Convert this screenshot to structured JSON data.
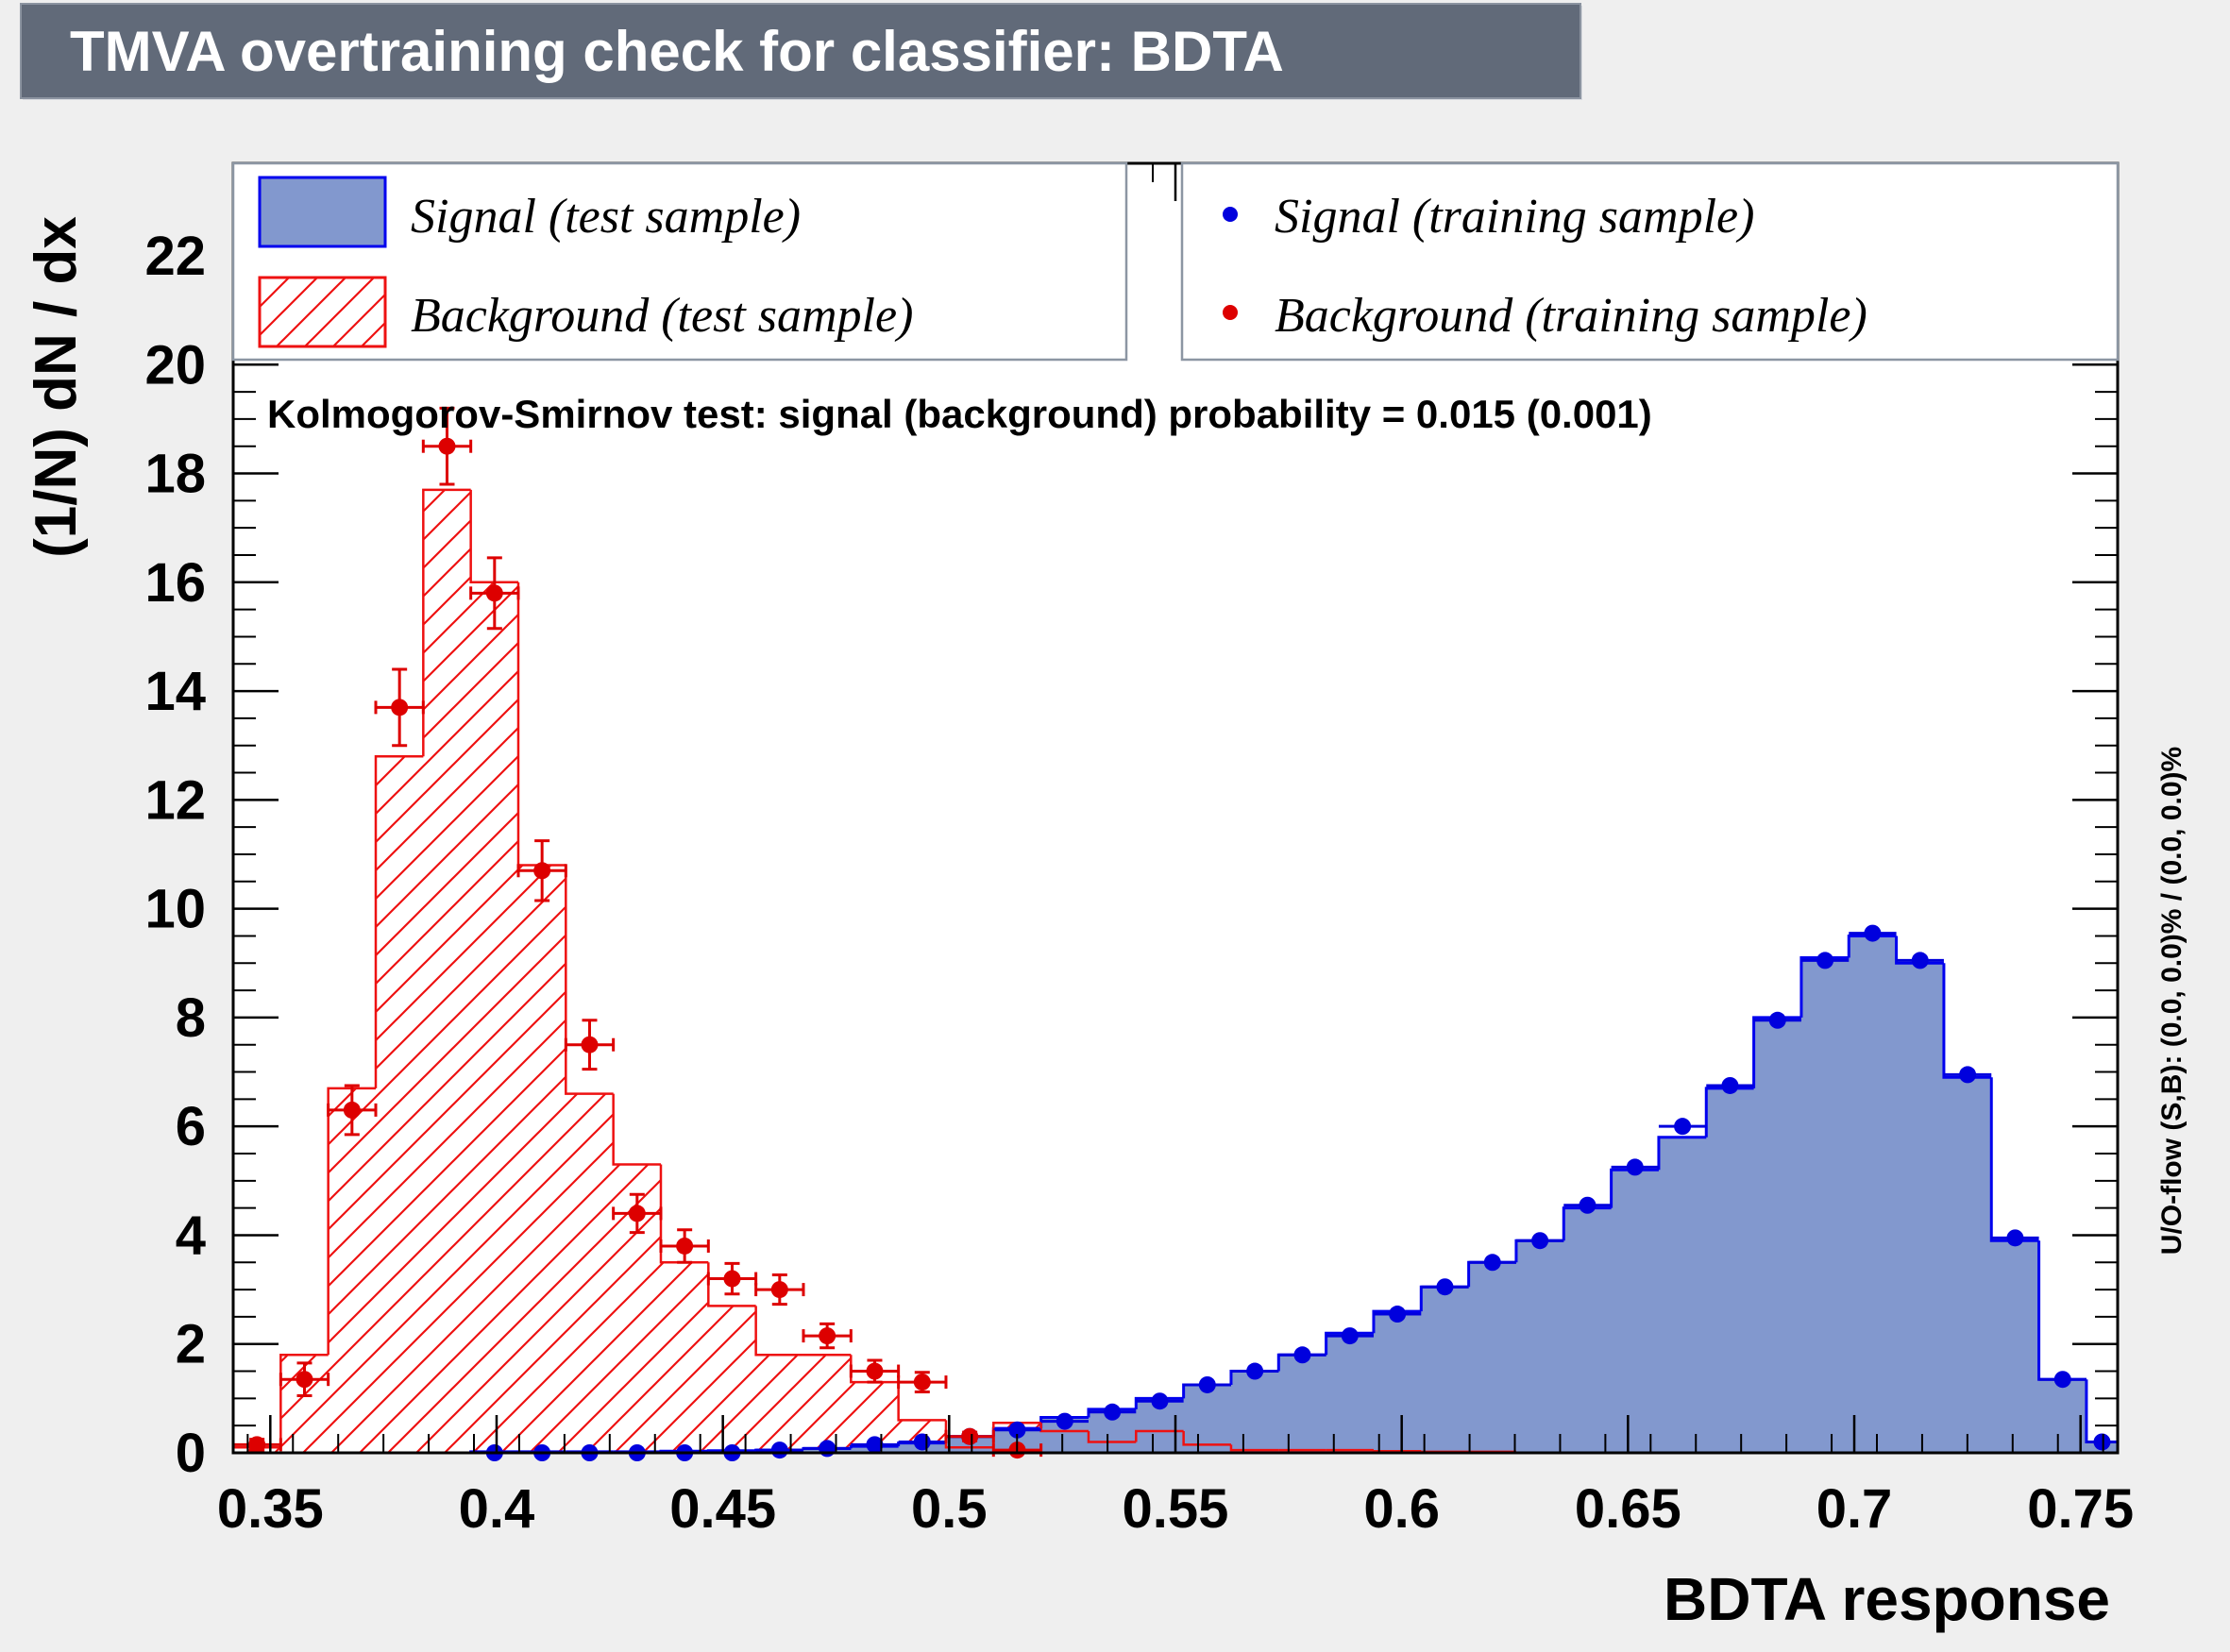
{
  "title": "TMVA overtraining check for classifier: BDTA",
  "colors": {
    "page_bg": "#efefef",
    "plot_bg": "#ffffff",
    "title_box": "#616a79",
    "signal_fill": "#8298ce",
    "signal_line": "#0000ee",
    "background_line": "#ee1111",
    "signal_marker": "#0000dd",
    "background_marker": "#dd0000"
  },
  "legend": {
    "signal_test": "Signal (test sample)",
    "background_test": "Background (test sample)",
    "signal_train": "Signal (training sample)",
    "background_train": "Background (training sample)",
    "placement": "top"
  },
  "ks_text": "Kolmogorov-Smirnov test: signal (background) probability = 0.015 (0.001)",
  "side_text": "U/O-flow (S,B): (0.0, 0.0)% / (0.0, 0.0)%",
  "chart_data": {
    "type": "histogram",
    "title": "TMVA overtraining check for classifier: BDTA",
    "xlabel": "BDTA response",
    "ylabel": "(1/N) dN / dx",
    "xlim": [
      0.3418,
      0.7582
    ],
    "ylim": [
      0,
      23.7
    ],
    "x_ticks": [
      0.35,
      0.4,
      0.45,
      0.5,
      0.55,
      0.6,
      0.65,
      0.7,
      0.75
    ],
    "x_tick_labels": [
      "0.35",
      "0.4",
      "0.45",
      "0.5",
      "0.55",
      "0.6",
      "0.65",
      "0.7",
      "0.75"
    ],
    "y_ticks": [
      0,
      2,
      4,
      6,
      8,
      10,
      12,
      14,
      16,
      18,
      20,
      22
    ],
    "y_tick_labels": [
      "0",
      "2",
      "4",
      "6",
      "8",
      "10",
      "12",
      "14",
      "16",
      "18",
      "20",
      "22"
    ],
    "grid": false,
    "bin_edges": [
      0.3418,
      0.3523,
      0.3628,
      0.3733,
      0.3838,
      0.3943,
      0.4048,
      0.4153,
      0.4258,
      0.4363,
      0.4468,
      0.4573,
      0.4678,
      0.4783,
      0.4888,
      0.4993,
      0.5098,
      0.5203,
      0.5308,
      0.5413,
      0.5518,
      0.5623,
      0.5728,
      0.5833,
      0.5938,
      0.6043,
      0.6148,
      0.6253,
      0.6358,
      0.6463,
      0.6568,
      0.6673,
      0.6778,
      0.6883,
      0.6988,
      0.7093,
      0.7198,
      0.7303,
      0.7408,
      0.7513,
      0.7582
    ],
    "series": [
      {
        "name": "Signal (test sample)",
        "style": "filled-histogram",
        "values": [
          0,
          0,
          0,
          0,
          0,
          0.02,
          0.02,
          0.02,
          0.02,
          0.03,
          0.04,
          0.05,
          0.08,
          0.12,
          0.18,
          0.3,
          0.45,
          0.65,
          0.8,
          1.0,
          1.25,
          1.5,
          1.8,
          2.2,
          2.6,
          3.05,
          3.5,
          3.9,
          4.5,
          5.2,
          5.8,
          6.7,
          8.0,
          9.1,
          9.5,
          9.0,
          6.9,
          3.9,
          1.35,
          0.2
        ]
      },
      {
        "name": "Background (test sample)",
        "style": "hatched-histogram",
        "values": [
          0.1,
          1.8,
          6.7,
          12.8,
          17.7,
          16.0,
          10.8,
          6.6,
          5.3,
          3.5,
          2.7,
          1.8,
          1.8,
          1.3,
          0.6,
          0.1,
          0.55,
          0.4,
          0.2,
          0.4,
          0.15,
          0.05,
          0.05,
          0.05,
          0.03,
          0.02,
          0.02,
          0,
          0,
          0,
          0,
          0,
          0,
          0,
          0,
          0,
          0,
          0,
          0,
          0
        ]
      },
      {
        "name": "Signal (training sample)",
        "style": "markers",
        "values": [
          null,
          null,
          null,
          null,
          null,
          0,
          0,
          0,
          0,
          0,
          0,
          0.05,
          0.08,
          0.15,
          0.2,
          0.3,
          0.42,
          0.58,
          0.75,
          0.95,
          1.25,
          1.5,
          1.8,
          2.15,
          2.55,
          3.05,
          3.5,
          3.9,
          4.55,
          5.25,
          6.0,
          6.75,
          7.95,
          9.05,
          9.55,
          9.05,
          6.95,
          3.95,
          1.35,
          0.2
        ]
      },
      {
        "name": "Background (training sample)",
        "style": "markers-with-errors",
        "values": [
          0.15,
          1.35,
          6.3,
          13.7,
          18.5,
          15.8,
          10.7,
          7.5,
          4.4,
          3.8,
          3.2,
          3.0,
          2.15,
          1.5,
          1.3,
          0.3,
          0.05,
          null,
          null,
          null,
          null,
          null,
          null,
          null,
          null,
          null,
          null,
          null,
          null,
          null,
          null,
          null,
          null,
          null,
          null,
          null,
          null,
          null,
          null,
          null
        ],
        "errors": [
          0.1,
          0.3,
          0.45,
          0.7,
          0.7,
          0.65,
          0.55,
          0.45,
          0.35,
          0.3,
          0.28,
          0.27,
          0.22,
          0.2,
          0.18,
          0.08,
          0.03,
          null,
          null,
          null,
          null,
          null,
          null,
          null,
          null,
          null,
          null,
          null,
          null,
          null,
          null,
          null,
          null,
          null,
          null,
          null,
          null,
          null,
          null,
          null
        ]
      }
    ]
  }
}
